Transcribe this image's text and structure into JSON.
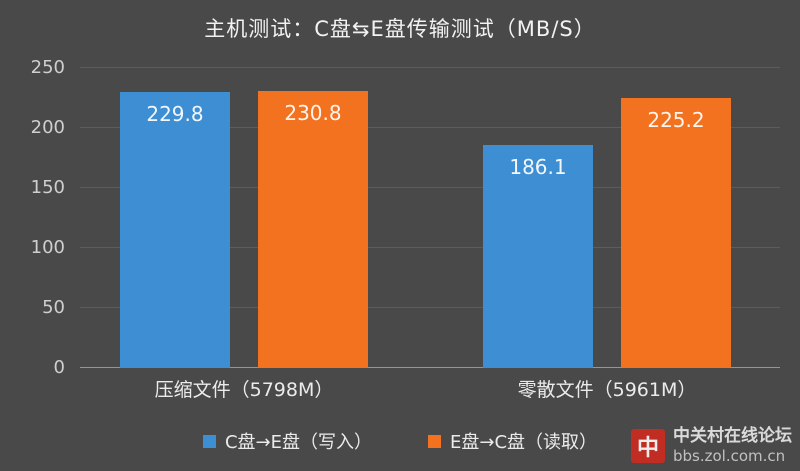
{
  "title": "主机测试：C盘⇆E盘传输测试（MB/S）",
  "chart_data": {
    "type": "bar",
    "title": "主机测试：C盘⇆E盘传输测试（MB/S）",
    "categories": [
      "压缩文件（5798M）",
      "零散文件（5961M）"
    ],
    "series": [
      {
        "name": "C盘→E盘（写入）",
        "color": "#3d8ed2",
        "values": [
          229.8,
          186.1
        ]
      },
      {
        "name": "E盘→C盘（读取）",
        "color": "#f2721f",
        "values": [
          230.8,
          225.2
        ]
      }
    ],
    "xlabel": "",
    "ylabel": "",
    "ylim": [
      0,
      250
    ],
    "yticks": [
      0,
      50,
      100,
      150,
      200,
      250
    ],
    "grid": true,
    "legend_position": "bottom",
    "background_color": "#494949",
    "data_labels": true
  },
  "watermark": {
    "logo_glyph": "中",
    "line1": "中关村在线论坛",
    "line2": "bbs.zol.com.cn"
  }
}
